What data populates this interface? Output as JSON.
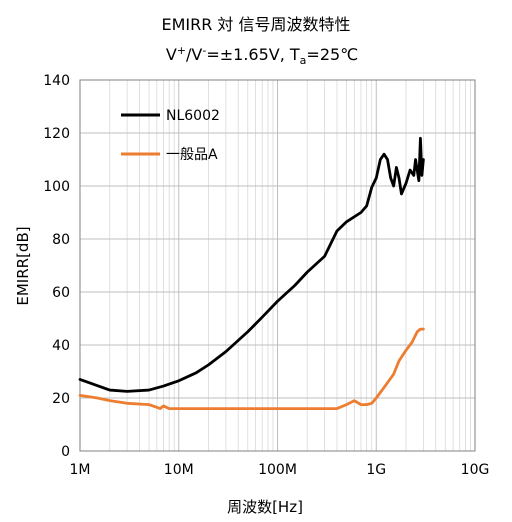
{
  "chart_data": {
    "type": "line",
    "title": "EMIRR 対 信号周波数特性",
    "subtitle": {
      "prefix": "V",
      "sup1": "+",
      "mid": "/V",
      "sup2": "-",
      "rest": "=±1.65V, T",
      "sub": "a",
      "end": "=25℃"
    },
    "xlabel": "周波数[Hz]",
    "ylabel": "EMIRR[dB]",
    "x_scale": "log",
    "xlim": [
      1000000,
      10000000000
    ],
    "ylim": [
      0,
      140
    ],
    "x_ticks": [
      {
        "value": 1000000,
        "label": "1M"
      },
      {
        "value": 10000000,
        "label": "10M"
      },
      {
        "value": 100000000,
        "label": "100M"
      },
      {
        "value": 1000000000,
        "label": "1G"
      },
      {
        "value": 10000000000,
        "label": "10G"
      }
    ],
    "y_ticks": [
      0,
      20,
      40,
      60,
      80,
      100,
      120,
      140
    ],
    "grid": true,
    "legend_position": "top-left",
    "series": [
      {
        "name": "NL6002",
        "color": "#000000",
        "points": [
          [
            1000000,
            27
          ],
          [
            2000000,
            23
          ],
          [
            3000000,
            22.5
          ],
          [
            5000000,
            23
          ],
          [
            7000000,
            24.5
          ],
          [
            10000000,
            26.5
          ],
          [
            15000000,
            29.5
          ],
          [
            20000000,
            32.5
          ],
          [
            30000000,
            37.5
          ],
          [
            50000000,
            45
          ],
          [
            70000000,
            50.5
          ],
          [
            100000000,
            56.5
          ],
          [
            150000000,
            62.5
          ],
          [
            200000000,
            67.5
          ],
          [
            300000000,
            73.5
          ],
          [
            400000000,
            83
          ],
          [
            500000000,
            86.5
          ],
          [
            700000000,
            90
          ],
          [
            800000000,
            92.5
          ],
          [
            900000000,
            99.5
          ],
          [
            1000000000,
            103
          ],
          [
            1100000000,
            110
          ],
          [
            1200000000,
            112
          ],
          [
            1300000000,
            110
          ],
          [
            1400000000,
            103
          ],
          [
            1500000000,
            100
          ],
          [
            1600000000,
            107
          ],
          [
            1700000000,
            103
          ],
          [
            1800000000,
            97
          ],
          [
            2000000000,
            101
          ],
          [
            2200000000,
            106
          ],
          [
            2400000000,
            104
          ],
          [
            2500000000,
            110
          ],
          [
            2700000000,
            102
          ],
          [
            2800000000,
            118
          ],
          [
            2900000000,
            104
          ],
          [
            3000000000,
            110
          ]
        ]
      },
      {
        "name": "一般品A",
        "color": "#ED7D31",
        "points": [
          [
            1000000,
            21
          ],
          [
            1500000,
            20
          ],
          [
            2000000,
            19
          ],
          [
            3000000,
            18
          ],
          [
            5000000,
            17.5
          ],
          [
            6000000,
            16.5
          ],
          [
            6500000,
            16
          ],
          [
            7000000,
            17
          ],
          [
            8000000,
            16
          ],
          [
            10000000,
            16
          ],
          [
            20000000,
            16
          ],
          [
            50000000,
            16
          ],
          [
            100000000,
            16
          ],
          [
            200000000,
            16
          ],
          [
            400000000,
            16
          ],
          [
            500000000,
            17.5
          ],
          [
            600000000,
            19
          ],
          [
            700000000,
            17.5
          ],
          [
            800000000,
            17.5
          ],
          [
            900000000,
            18
          ],
          [
            1000000000,
            20
          ],
          [
            1200000000,
            24
          ],
          [
            1500000000,
            29
          ],
          [
            1700000000,
            34
          ],
          [
            2000000000,
            38
          ],
          [
            2300000000,
            41
          ],
          [
            2600000000,
            45
          ],
          [
            2800000000,
            46
          ],
          [
            3000000000,
            46
          ]
        ]
      }
    ]
  }
}
